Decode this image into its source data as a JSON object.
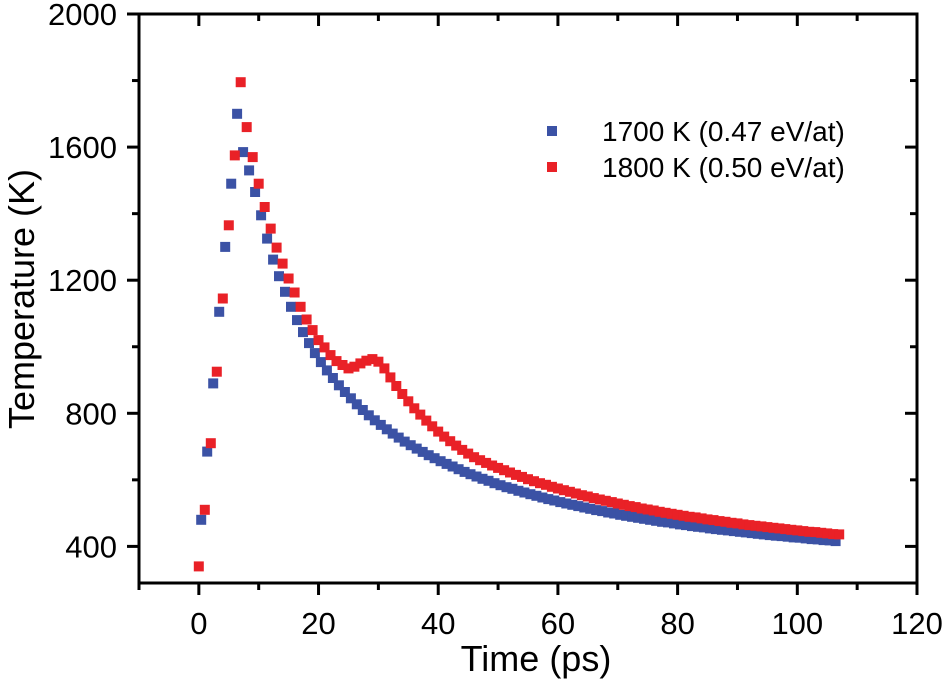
{
  "chart_data": {
    "type": "scatter",
    "title": "",
    "xlabel": "Time (ps)",
    "ylabel": "Temperature (K)",
    "xlim": [
      -10,
      120
    ],
    "ylim": [
      290,
      2000
    ],
    "x_major_ticks": [
      0,
      20,
      40,
      60,
      80,
      100,
      120
    ],
    "x_minor_ticks": [
      -10,
      10,
      30,
      50,
      70,
      90,
      110
    ],
    "y_major_ticks": [
      400,
      800,
      1200,
      1600,
      2000
    ],
    "y_minor_ticks": [
      600,
      1000,
      1400,
      1800
    ],
    "grid": false,
    "background": "#ffffff",
    "axis_color": "#000000",
    "marker": "square",
    "marker_size_px": 10,
    "legend": {
      "position": "upper-right-inside"
    },
    "series": [
      {
        "name": "1700 K (0.47 eV/at)",
        "color": "#3b52a5",
        "x": [
          0.4,
          1.4,
          2.4,
          3.4,
          4.4,
          5.4,
          6.4,
          7.4,
          8.4,
          9.4,
          10.4,
          11.4,
          12.4,
          13.4,
          14.4,
          15.4,
          16.4,
          17.4,
          18.4,
          19.4,
          20.4,
          21.4,
          22.4,
          23.4,
          24.4,
          25.4,
          26.4,
          27.4,
          28.4,
          29.4,
          30.4,
          31.4,
          32.4,
          33.4,
          34.4,
          35.4,
          36.4,
          37.4,
          38.4,
          39.4,
          40.4,
          41.4,
          42.4,
          43.4,
          44.4,
          45.4,
          46.4,
          47.4,
          48.4,
          49.4,
          50.4,
          51.4,
          52.4,
          53.4,
          54.4,
          55.4,
          56.4,
          57.4,
          58.4,
          59.4,
          60.4,
          61.4,
          62.4,
          63.4,
          64.4,
          65.4,
          66.4,
          67.4,
          68.4,
          69.4,
          70.4,
          71.4,
          72.4,
          73.4,
          74.4,
          75.4,
          76.4,
          77.4,
          78.4,
          79.4,
          80.4,
          81.4,
          82.4,
          83.4,
          84.4,
          85.4,
          86.4,
          87.4,
          88.4,
          89.4,
          90.4,
          91.4,
          92.4,
          93.4,
          94.4,
          95.4,
          96.4,
          97.4,
          98.4,
          99.4,
          100.4,
          101.4,
          102.4,
          103.4,
          104.4,
          105.4,
          106.4
        ],
        "y": [
          480,
          685,
          890,
          1105,
          1300,
          1490,
          1700,
          1585,
          1530,
          1465,
          1395,
          1325,
          1262,
          1212,
          1165,
          1120,
          1080,
          1044,
          1011,
          981,
          954,
          929,
          906,
          884,
          864,
          845,
          827,
          810,
          794,
          779,
          765,
          752,
          739,
          727,
          715,
          704,
          694,
          684,
          674,
          665,
          656,
          648,
          640,
          632,
          624,
          617,
          610,
          603,
          597,
          590,
          584,
          578,
          573,
          567,
          562,
          557,
          552,
          547,
          542,
          538,
          533,
          529,
          525,
          521,
          517,
          513,
          509,
          506,
          502,
          499,
          495,
          492,
          489,
          486,
          483,
          480,
          477,
          474,
          472,
          469,
          466,
          464,
          461,
          459,
          457,
          454,
          452,
          450,
          448,
          446,
          444,
          442,
          440,
          438,
          436,
          434,
          432,
          431,
          429,
          427,
          426,
          424,
          422,
          421,
          419,
          418,
          416
        ]
      },
      {
        "name": "1800 K (0.50 eV/at)",
        "color": "#e92127",
        "x": [
          0,
          1,
          2,
          3,
          4,
          5,
          6,
          7,
          8,
          9,
          10,
          11,
          12,
          13,
          14,
          15,
          16,
          17,
          18,
          19,
          20,
          21,
          22,
          23,
          24,
          25,
          26,
          27,
          28,
          29,
          30,
          31,
          32,
          33,
          34,
          35,
          36,
          37,
          38,
          39,
          40,
          41,
          42,
          43,
          44,
          45,
          46,
          47,
          48,
          49,
          50,
          51,
          52,
          53,
          54,
          55,
          56,
          57,
          58,
          59,
          60,
          61,
          62,
          63,
          64,
          65,
          66,
          67,
          68,
          69,
          70,
          71,
          72,
          73,
          74,
          75,
          76,
          77,
          78,
          79,
          80,
          81,
          82,
          83,
          84,
          85,
          86,
          87,
          88,
          89,
          90,
          91,
          92,
          93,
          94,
          95,
          96,
          97,
          98,
          99,
          100,
          101,
          102,
          103,
          104,
          105,
          106,
          107
        ],
        "y": [
          340,
          510,
          710,
          925,
          1145,
          1365,
          1575,
          1795,
          1660,
          1570,
          1490,
          1420,
          1355,
          1298,
          1250,
          1205,
          1163,
          1120,
          1082,
          1050,
          1020,
          998,
          975,
          957,
          945,
          935,
          940,
          950,
          958,
          963,
          955,
          935,
          908,
          882,
          858,
          836,
          815,
          796,
          778,
          761,
          745,
          730,
          716,
          703,
          690,
          679,
          668,
          659,
          651,
          643,
          636,
          629,
          622,
          615,
          609,
          602,
          596,
          590,
          585,
          579,
          574,
          569,
          564,
          559,
          554,
          550,
          545,
          541,
          537,
          533,
          529,
          525,
          521,
          518,
          514,
          511,
          508,
          504,
          501,
          498,
          495,
          492,
          489,
          487,
          484,
          481,
          479,
          476,
          474,
          471,
          469,
          466,
          464,
          462,
          460,
          458,
          456,
          454,
          452,
          450,
          448,
          446,
          444,
          443,
          441,
          439,
          437,
          436
        ]
      }
    ]
  }
}
